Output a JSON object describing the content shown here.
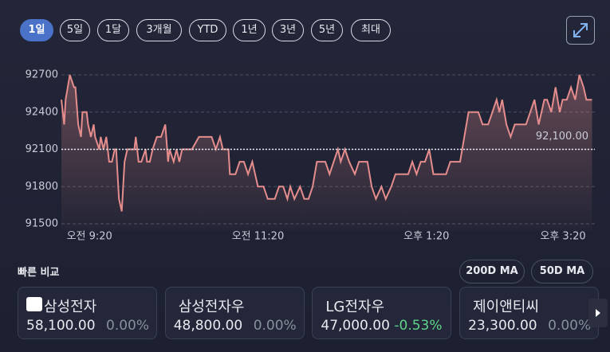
{
  "tabs": [
    "1일",
    "5일",
    "1달",
    "3개월",
    "YTD",
    "1년",
    "3년",
    "5년",
    "최대"
  ],
  "selected_tab": 0,
  "chart_data": {
    "type": "line",
    "color": "#e58d8d",
    "x": [
      540,
      542,
      543,
      546,
      549,
      550,
      552,
      554,
      555,
      558,
      559,
      561,
      563,
      564,
      567,
      568,
      570,
      572,
      574,
      576,
      578,
      579,
      581,
      583,
      585,
      587,
      588,
      592,
      593,
      595,
      597,
      600,
      601,
      603,
      605,
      608,
      611,
      614,
      616,
      617,
      620,
      622,
      624,
      626,
      633,
      638,
      647,
      650,
      653,
      655,
      659,
      660,
      664,
      667,
      670,
      673,
      676,
      680,
      684,
      687,
      692,
      695,
      698,
      701,
      703,
      706,
      710,
      713,
      716,
      719,
      722,
      728,
      731,
      734,
      737,
      739,
      742,
      745,
      749,
      752,
      758,
      761,
      764,
      768,
      771,
      775,
      778,
      787,
      790,
      793,
      796,
      799,
      802,
      805,
      814,
      817,
      824,
      827,
      830,
      837,
      840,
      844,
      847,
      850,
      852,
      854,
      857,
      860,
      863,
      871,
      874,
      877,
      880,
      884,
      886,
      889,
      892,
      895,
      897,
      900,
      903,
      906,
      909,
      912,
      914,
      918
    ],
    "values": [
      92500,
      92300,
      92500,
      92700,
      92600,
      92600,
      92300,
      92200,
      92400,
      92400,
      92300,
      92200,
      92300,
      92200,
      92100,
      92200,
      92100,
      92200,
      92000,
      92000,
      92100,
      92100,
      91700,
      91600,
      92000,
      92100,
      92100,
      92100,
      92200,
      92000,
      92000,
      92100,
      92000,
      92000,
      92100,
      92200,
      92200,
      92300,
      92000,
      92100,
      92000,
      92100,
      92000,
      92100,
      92100,
      92200,
      92200,
      92100,
      92200,
      92100,
      92100,
      91900,
      91900,
      92000,
      92000,
      91900,
      92000,
      91800,
      91800,
      91700,
      91700,
      91800,
      91800,
      91700,
      91800,
      91700,
      91800,
      91700,
      91700,
      91800,
      92000,
      92000,
      91900,
      92000,
      92100,
      92000,
      92100,
      92000,
      91900,
      92000,
      92000,
      91800,
      91700,
      91800,
      91700,
      91800,
      91900,
      91900,
      92000,
      91900,
      92000,
      92000,
      92100,
      91900,
      91900,
      92000,
      92000,
      92200,
      92400,
      92400,
      92300,
      92300,
      92400,
      92500,
      92400,
      92500,
      92300,
      92200,
      92300,
      92300,
      92400,
      92500,
      92300,
      92500,
      92500,
      92400,
      92600,
      92400,
      92500,
      92500,
      92600,
      92500,
      92700,
      92600,
      92500,
      92500
    ],
    "xlim": [
      540,
      920
    ],
    "xticks": [
      {
        "value": 560,
        "label": "오전 9:20"
      },
      {
        "value": 680,
        "label": "오전 11:20"
      },
      {
        "value": 800,
        "label": "오후 1:20"
      },
      {
        "value": 920,
        "label": "오후 3:20"
      }
    ],
    "ylim": [
      91500,
      92700
    ],
    "yticks": [
      91500,
      91800,
      92100,
      92400,
      92700
    ],
    "grid": true,
    "reference": {
      "value": 92100,
      "label": "92,100.00"
    }
  },
  "compare": {
    "title": "빠른 비교",
    "buttons": [
      "200D MA",
      "50D MA"
    ],
    "cards": [
      {
        "name": "삼성전자",
        "price": "58,100.00",
        "change": "0.00%",
        "color": "#8a8f9c"
      },
      {
        "name": "삼성전자우",
        "price": "48,800.00",
        "change": "0.00%",
        "color": "#8a8f9c"
      },
      {
        "name": "LG전자우",
        "price": "47,000.00",
        "change": "-0.53%",
        "color": "#5fd38a"
      },
      {
        "name": "제이앤티씨",
        "price": "23,300.00",
        "change": "0.00%",
        "color": "#8a8f9c"
      }
    ]
  }
}
